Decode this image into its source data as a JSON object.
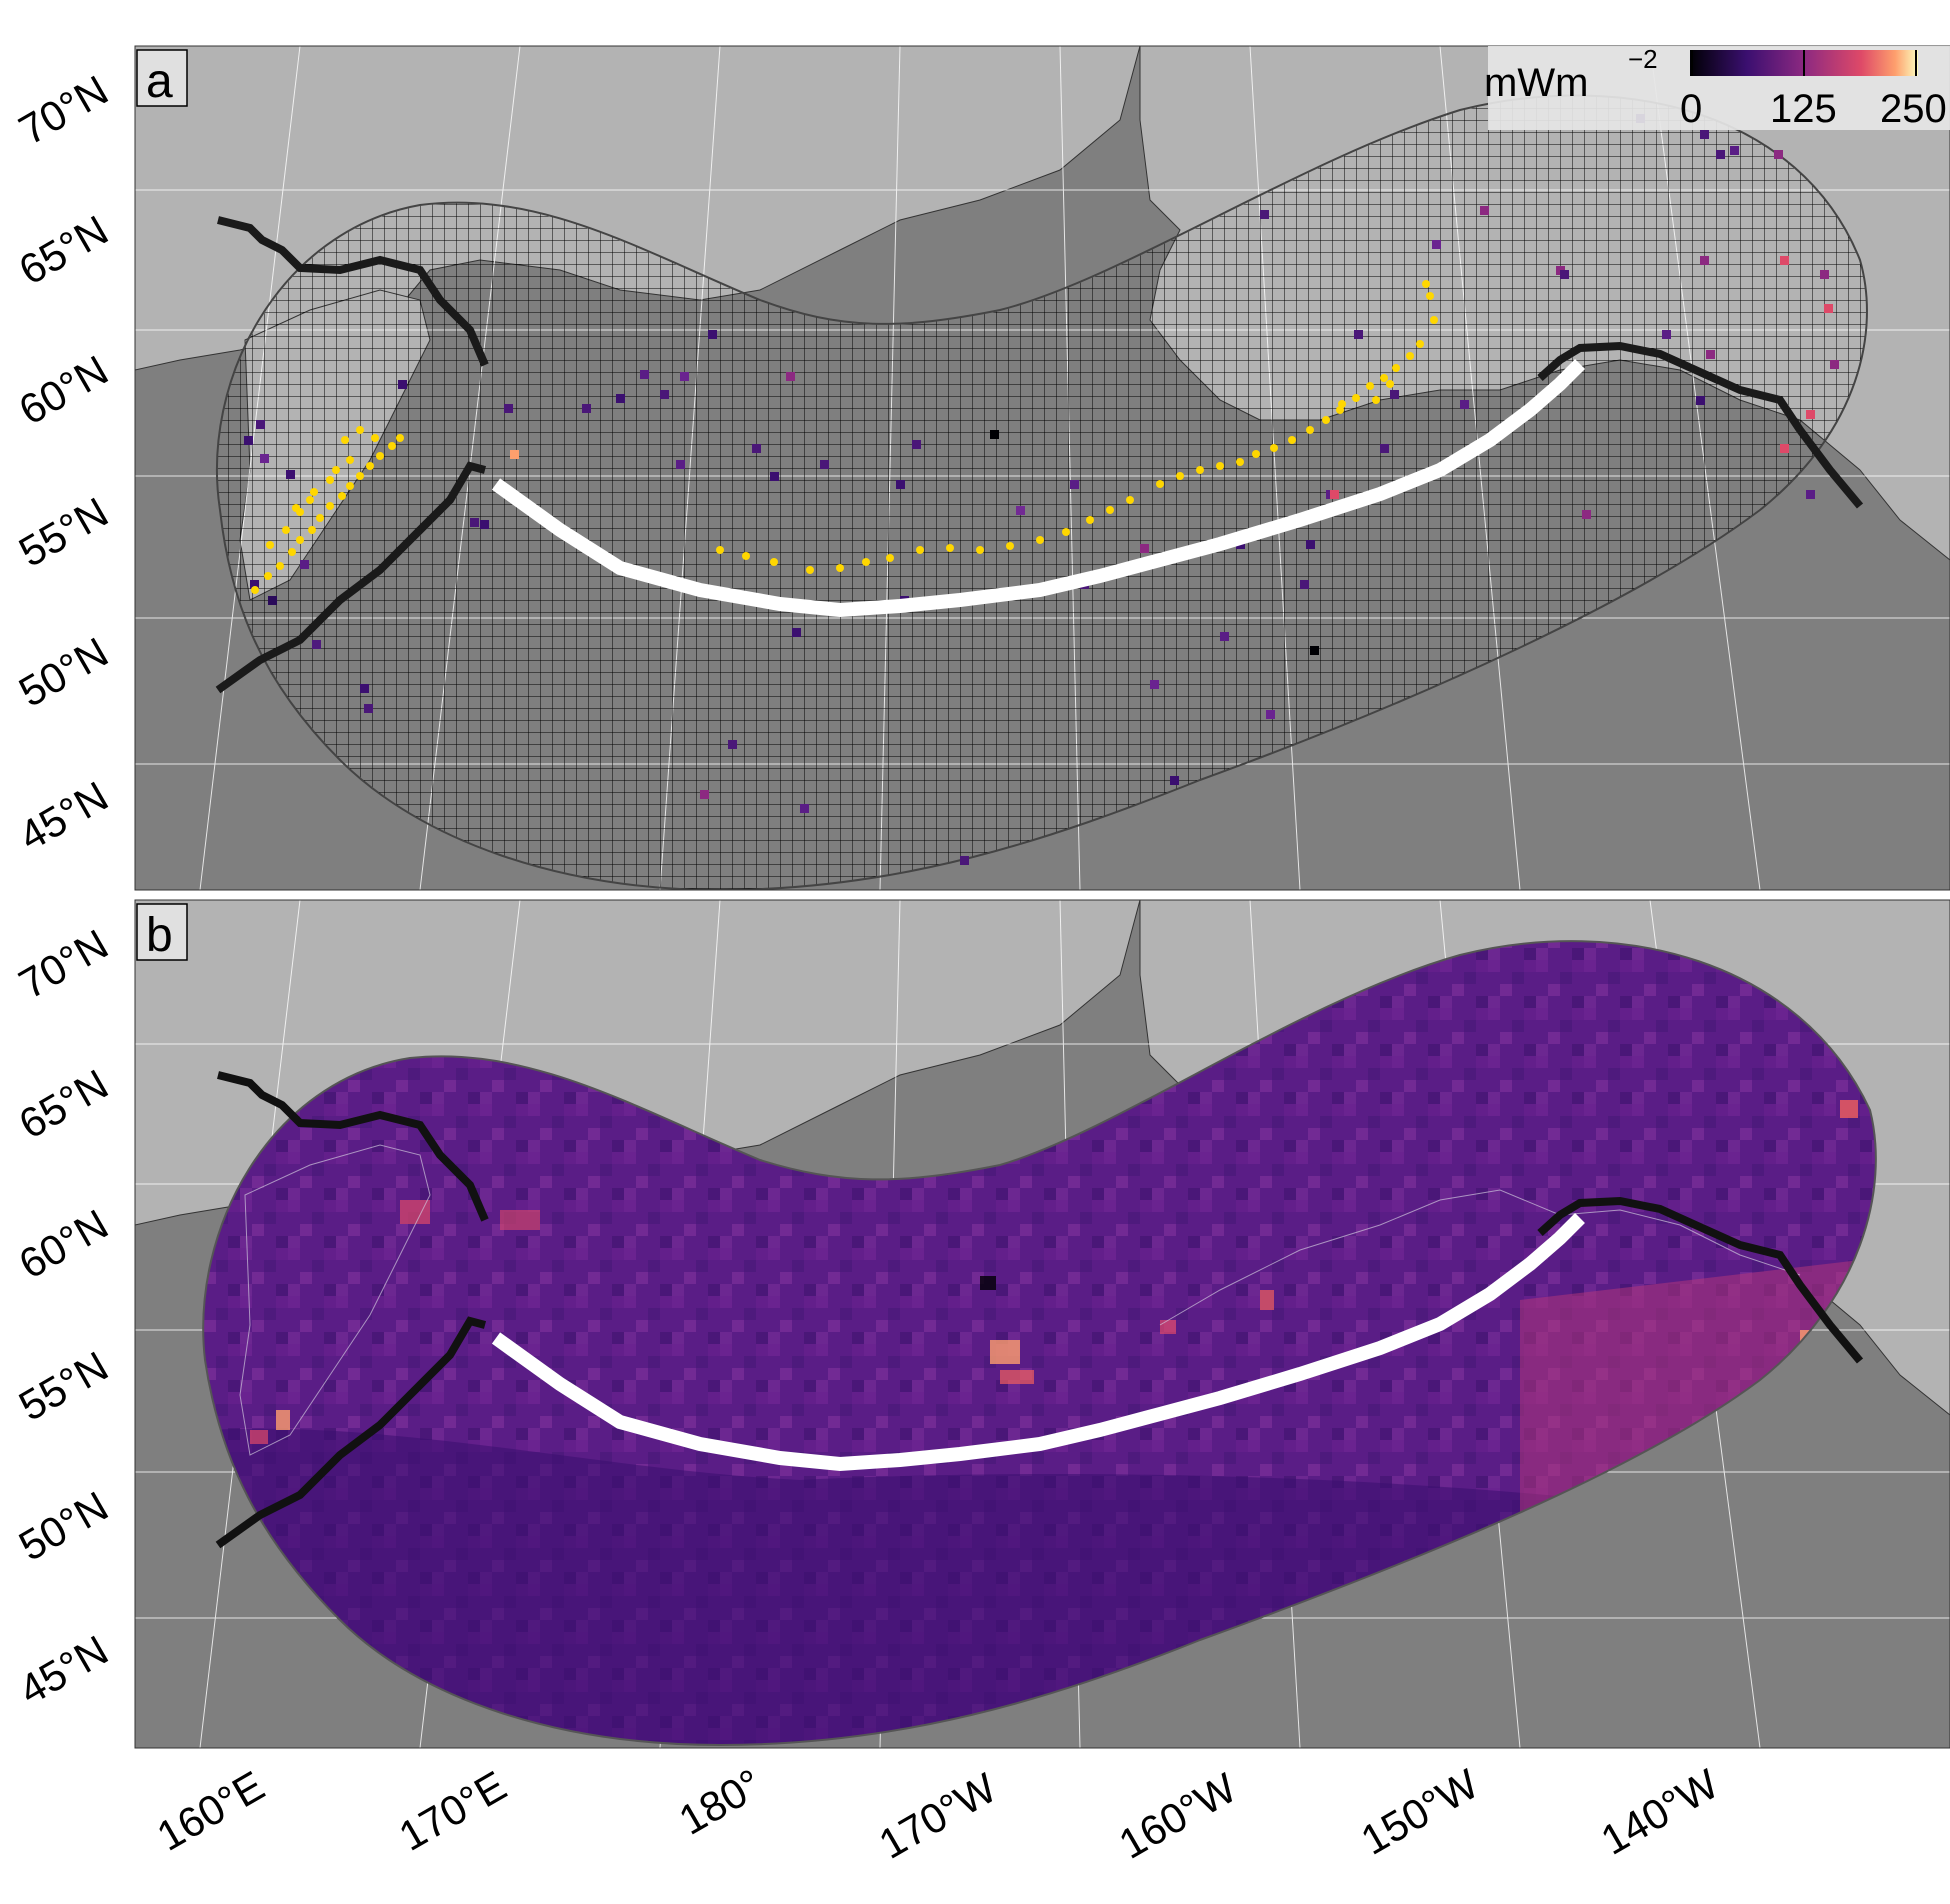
{
  "panels": [
    {
      "id": "a",
      "label": "a"
    },
    {
      "id": "b",
      "label": "b"
    }
  ],
  "lat_labels": [
    "70°N",
    "65°N",
    "60°N",
    "55°N",
    "50°N",
    "45°N"
  ],
  "lon_labels": [
    "160°E",
    "170°E",
    "180°",
    "170°W",
    "160°W",
    "150°W",
    "140°W"
  ],
  "legend": {
    "unit": "mWm",
    "unit_exp": "−2",
    "ticks": [
      "0",
      "125",
      "250"
    ],
    "range": [
      0,
      250
    ],
    "colormap": "magma"
  },
  "colors": {
    "ocean": "#7f7f7f",
    "land": "#b3b3b3",
    "grid_line": "#000000",
    "observation_sites": "#ffd700",
    "trench": "#ffffff",
    "plate_boundary": "#1a1a1a"
  }
}
